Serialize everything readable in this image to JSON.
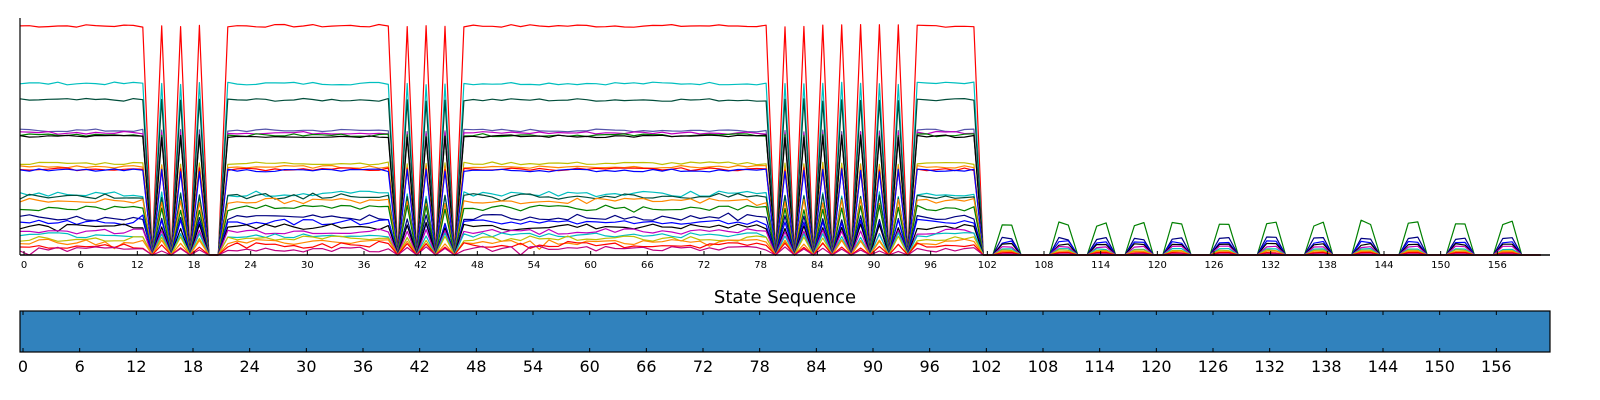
{
  "chart_data": [
    {
      "type": "line",
      "title": "",
      "xlabel": "",
      "ylabel": "",
      "x_ticks": [
        0,
        6,
        12,
        18,
        24,
        30,
        36,
        42,
        48,
        54,
        60,
        66,
        72,
        78,
        84,
        90,
        96,
        102,
        108,
        114,
        120,
        126,
        132,
        138,
        144,
        150,
        156
      ],
      "xlim": [
        0,
        162
      ],
      "ylim": [
        0,
        1.0
      ],
      "y_ticks_shown": false,
      "grid": false,
      "legend": "none",
      "active_segments": [
        [
          0,
          13
        ],
        [
          22,
          39
        ],
        [
          47,
          79
        ],
        [
          95,
          101
        ]
      ],
      "spike_centers": [
        15,
        17,
        19,
        41,
        43,
        45,
        81,
        83,
        85,
        87,
        89,
        91,
        93
      ],
      "low_pulse_centers": [
        105,
        111,
        115,
        119,
        123,
        128,
        133,
        138,
        143,
        148,
        153,
        158
      ],
      "series": [
        {
          "name": "",
          "color": "#ff0000",
          "level": 0.975,
          "low_pulse": 0
        },
        {
          "name": "",
          "color": "#00bfbf",
          "level": 0.73,
          "low_pulse": 0
        },
        {
          "name": "",
          "color": "#004d3a",
          "level": 0.66,
          "low_pulse": 0
        },
        {
          "name": "",
          "color": "#5555aa",
          "level": 0.53,
          "low_pulse": 0
        },
        {
          "name": "",
          "color": "#bf00bf",
          "level": 0.52,
          "low_pulse": 0
        },
        {
          "name": "",
          "color": "#007f00",
          "level": 0.51,
          "low_pulse": 0
        },
        {
          "name": "",
          "color": "#000000",
          "level": 0.505,
          "low_pulse": 0
        },
        {
          "name": "",
          "color": "#bfbf00",
          "level": 0.39,
          "low_pulse": 0
        },
        {
          "name": "",
          "color": "#ff8800",
          "level": 0.375,
          "low_pulse": 0
        },
        {
          "name": "",
          "color": "#ff0000",
          "level": 0.365,
          "low_pulse": 0
        },
        {
          "name": "",
          "color": "#0000ff",
          "level": 0.36,
          "low_pulse": 0
        },
        {
          "name": "",
          "color": "#00bfbf",
          "level": 0.26,
          "low_pulse": 0
        },
        {
          "name": "",
          "color": "#004d3a",
          "level": 0.25,
          "low_pulse": 0
        },
        {
          "name": "",
          "color": "#ff8800",
          "level": 0.23,
          "low_pulse": 0
        },
        {
          "name": "",
          "color": "#008000",
          "level": 0.2,
          "low_pulse": 0.135
        },
        {
          "name": "",
          "color": "#000080",
          "level": 0.16,
          "low_pulse": 0.07
        },
        {
          "name": "",
          "color": "#0000ff",
          "level": 0.14,
          "low_pulse": 0.055
        },
        {
          "name": "",
          "color": "#000000",
          "level": 0.12,
          "low_pulse": 0.045
        },
        {
          "name": "",
          "color": "#bf00bf",
          "level": 0.1,
          "low_pulse": 0.035
        },
        {
          "name": "",
          "color": "#00bfbf",
          "level": 0.085,
          "low_pulse": 0.025
        },
        {
          "name": "",
          "color": "#bfbf00",
          "level": 0.07,
          "low_pulse": 0.02
        },
        {
          "name": "",
          "color": "#ff8800",
          "level": 0.055,
          "low_pulse": 0.015
        },
        {
          "name": "",
          "color": "#ff0000",
          "level": 0.04,
          "low_pulse": 0.01
        },
        {
          "name": "",
          "color": "#c00080",
          "level": 0.025,
          "low_pulse": 0.005
        }
      ]
    },
    {
      "type": "heatmap",
      "title": "State Sequence",
      "xlabel": "",
      "ylabel": "",
      "x_ticks": [
        0,
        6,
        12,
        18,
        24,
        30,
        36,
        42,
        48,
        54,
        60,
        66,
        72,
        78,
        84,
        90,
        96,
        102,
        108,
        114,
        120,
        126,
        132,
        138,
        144,
        150,
        156
      ],
      "xlim": [
        0,
        162
      ],
      "states": [
        {
          "value": 0,
          "start": 0,
          "end": 162
        }
      ],
      "color": "#3182bd"
    }
  ]
}
